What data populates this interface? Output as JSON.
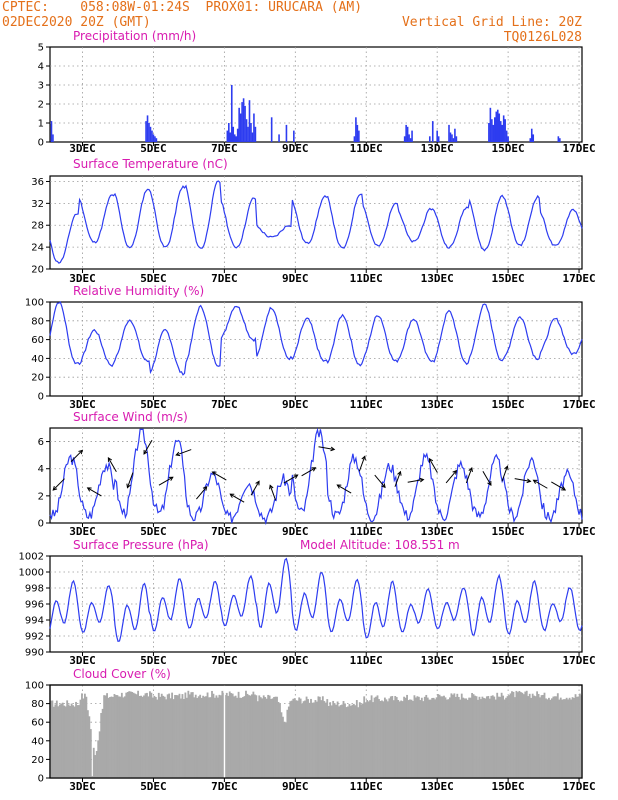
{
  "header": {
    "source": "CPTEC:",
    "location": "058:08W-01:24S  PROX01: URUCARA (AM)",
    "init_time": "02DEC2020 20Z (GMT)",
    "vertical_grid": "Vertical Grid Line: 20Z",
    "model_code": "TQ0126L028"
  },
  "colors": {
    "title": "#d81bb0",
    "header": "#e4701a",
    "series": "#2d3cf0",
    "bar": "#2d3cf0",
    "cloud": "#a9a9a9",
    "wind_arrow": "#000000"
  },
  "chart_data": [
    {
      "type": "bar",
      "title": "Precipitation (mm/h)",
      "ylim": [
        0,
        5
      ],
      "yticks": [
        "0",
        "1",
        "2",
        "3",
        "4",
        "5"
      ],
      "xticks": [
        "3DEC",
        "5DEC",
        "7DEC",
        "9DEC",
        "11DEC",
        "13DEC",
        "15DEC",
        "17DEC"
      ],
      "grid": true,
      "x_hours": [
        1,
        2,
        65,
        66,
        67,
        68,
        69,
        70,
        71,
        72,
        120,
        121,
        122,
        123,
        124,
        125,
        126,
        127,
        128,
        129,
        130,
        131,
        132,
        133,
        134,
        135,
        136,
        137,
        138,
        139,
        150,
        155,
        160,
        165,
        206,
        207,
        208,
        209,
        240,
        241,
        242,
        243,
        244,
        245,
        257,
        259,
        262,
        263,
        270,
        271,
        272,
        273,
        274,
        275,
        297,
        298,
        299,
        300,
        301,
        302,
        303,
        304,
        305,
        306,
        307,
        308,
        309,
        310,
        325,
        326,
        327,
        344,
        345
      ],
      "values": [
        1.1,
        0.4,
        1.1,
        1.4,
        1.0,
        0.8,
        0.6,
        0.4,
        0.3,
        0.2,
        0.6,
        1.0,
        0.5,
        3.0,
        0.8,
        0.4,
        0.3,
        0.7,
        1.8,
        1.5,
        2.1,
        2.3,
        1.9,
        1.2,
        0.8,
        2.2,
        1.0,
        0.5,
        1.5,
        0.8,
        1.3,
        0.4,
        0.9,
        0.6,
        0.3,
        1.3,
        0.9,
        0.6,
        0.3,
        0.9,
        0.8,
        0.4,
        0.2,
        0.6,
        0.3,
        1.1,
        0.6,
        0.3,
        0.9,
        0.5,
        0.4,
        0.2,
        0.7,
        0.3,
        1.0,
        1.8,
        1.2,
        0.9,
        1.3,
        1.6,
        1.7,
        1.5,
        1.1,
        0.9,
        1.4,
        1.2,
        0.6,
        0.3,
        0.2,
        0.7,
        0.4,
        0.3,
        0.2
      ]
    },
    {
      "type": "line",
      "title": "Surface Temperature (nC)",
      "ylim": [
        20,
        37
      ],
      "yticks": [
        "20",
        "24",
        "28",
        "32",
        "36"
      ],
      "xticks": [
        "3DEC",
        "5DEC",
        "7DEC",
        "9DEC",
        "11DEC",
        "13DEC",
        "15DEC",
        "17DEC"
      ],
      "grid": true,
      "daily_min": [
        21.2,
        24.9,
        24.0,
        24.0,
        23.8,
        24.0,
        25.8,
        24.7,
        23.8,
        24.2,
        25.0,
        24.0,
        23.5,
        24.4,
        24.2
      ],
      "daily_max": [
        30.1,
        33.5,
        34.6,
        35.0,
        36.1,
        33.0,
        28.0,
        33.2,
        33.8,
        32.2,
        31.0,
        31.3,
        33.4,
        33.2,
        30.9
      ]
    },
    {
      "type": "line",
      "title": "Relative Humidity (%)",
      "ylim": [
        0,
        100
      ],
      "yticks": [
        "0",
        "20",
        "40",
        "60",
        "80",
        "100"
      ],
      "xticks": [
        "3DEC",
        "5DEC",
        "7DEC",
        "9DEC",
        "11DEC",
        "13DEC",
        "15DEC",
        "17DEC"
      ],
      "grid": true,
      "daily_min": [
        35,
        33,
        37,
        24,
        33,
        60,
        40,
        37,
        33,
        37,
        38,
        35,
        38,
        40,
        45
      ],
      "daily_max": [
        100,
        70,
        81,
        70,
        95,
        96,
        94,
        82,
        86,
        86,
        82,
        90,
        97,
        84,
        82
      ]
    },
    {
      "type": "line",
      "title": "Surface Wind (m/s)",
      "ylim": [
        0,
        7
      ],
      "yticks": [
        "0",
        "2",
        "4",
        "6"
      ],
      "xticks": [
        "3DEC",
        "5DEC",
        "7DEC",
        "9DEC",
        "11DEC",
        "13DEC",
        "15DEC",
        "17DEC"
      ],
      "grid": true,
      "speed_peaks": [
        4.8,
        4.3,
        6.7,
        6.0,
        3.6,
        3.0,
        3.2,
        6.6,
        4.8,
        4.2,
        4.8,
        4.3,
        4.6,
        4.7,
        3.5
      ],
      "direction_arrows_deg": [
        225,
        45,
        300,
        330,
        200,
        210,
        60,
        250,
        40,
        300,
        300,
        30,
        340,
        60,
        60,
        100,
        300,
        20,
        140,
        20,
        80,
        330,
        40,
        20,
        150,
        20,
        100,
        300,
        120
      ]
    },
    {
      "type": "line",
      "title": "Surface Pressure (hPa)",
      "annotation": "Model Altitude: 108.551  m",
      "ylim": [
        990,
        1002
      ],
      "yticks": [
        "990",
        "992",
        "994",
        "996",
        "998",
        "1000",
        "1002"
      ],
      "xticks": [
        "3DEC",
        "5DEC",
        "7DEC",
        "9DEC",
        "11DEC",
        "13DEC",
        "15DEC",
        "17DEC"
      ],
      "grid": true,
      "daily_max": [
        999.0,
        998.5,
        998.7,
        999.4,
        999.0,
        999.6,
        1002.0,
        1000.2,
        999.2,
        999.0,
        998.0,
        998.2,
        999.7,
        999.0,
        998.2
      ],
      "daily_min": [
        991.6,
        991.8,
        990.6,
        992.0,
        992.4,
        992.6,
        992.2,
        992.0,
        991.8,
        991.0,
        992.0,
        992.4,
        991.4,
        991.6,
        992.2
      ]
    },
    {
      "type": "area",
      "title": "Cloud Cover (%)",
      "ylim": [
        0,
        100
      ],
      "yticks": [
        "0",
        "20",
        "40",
        "60",
        "80",
        "100"
      ],
      "xticks": [
        "3DEC",
        "5DEC",
        "7DEC",
        "9DEC",
        "11DEC",
        "13DEC",
        "15DEC",
        "17DEC"
      ],
      "grid": true,
      "daily_typical": [
        80,
        88,
        90,
        88,
        90,
        90,
        86,
        84,
        80,
        85,
        86,
        88,
        88,
        90,
        88
      ],
      "minimum_dip": {
        "time": "3DEC",
        "value": 2
      }
    }
  ]
}
